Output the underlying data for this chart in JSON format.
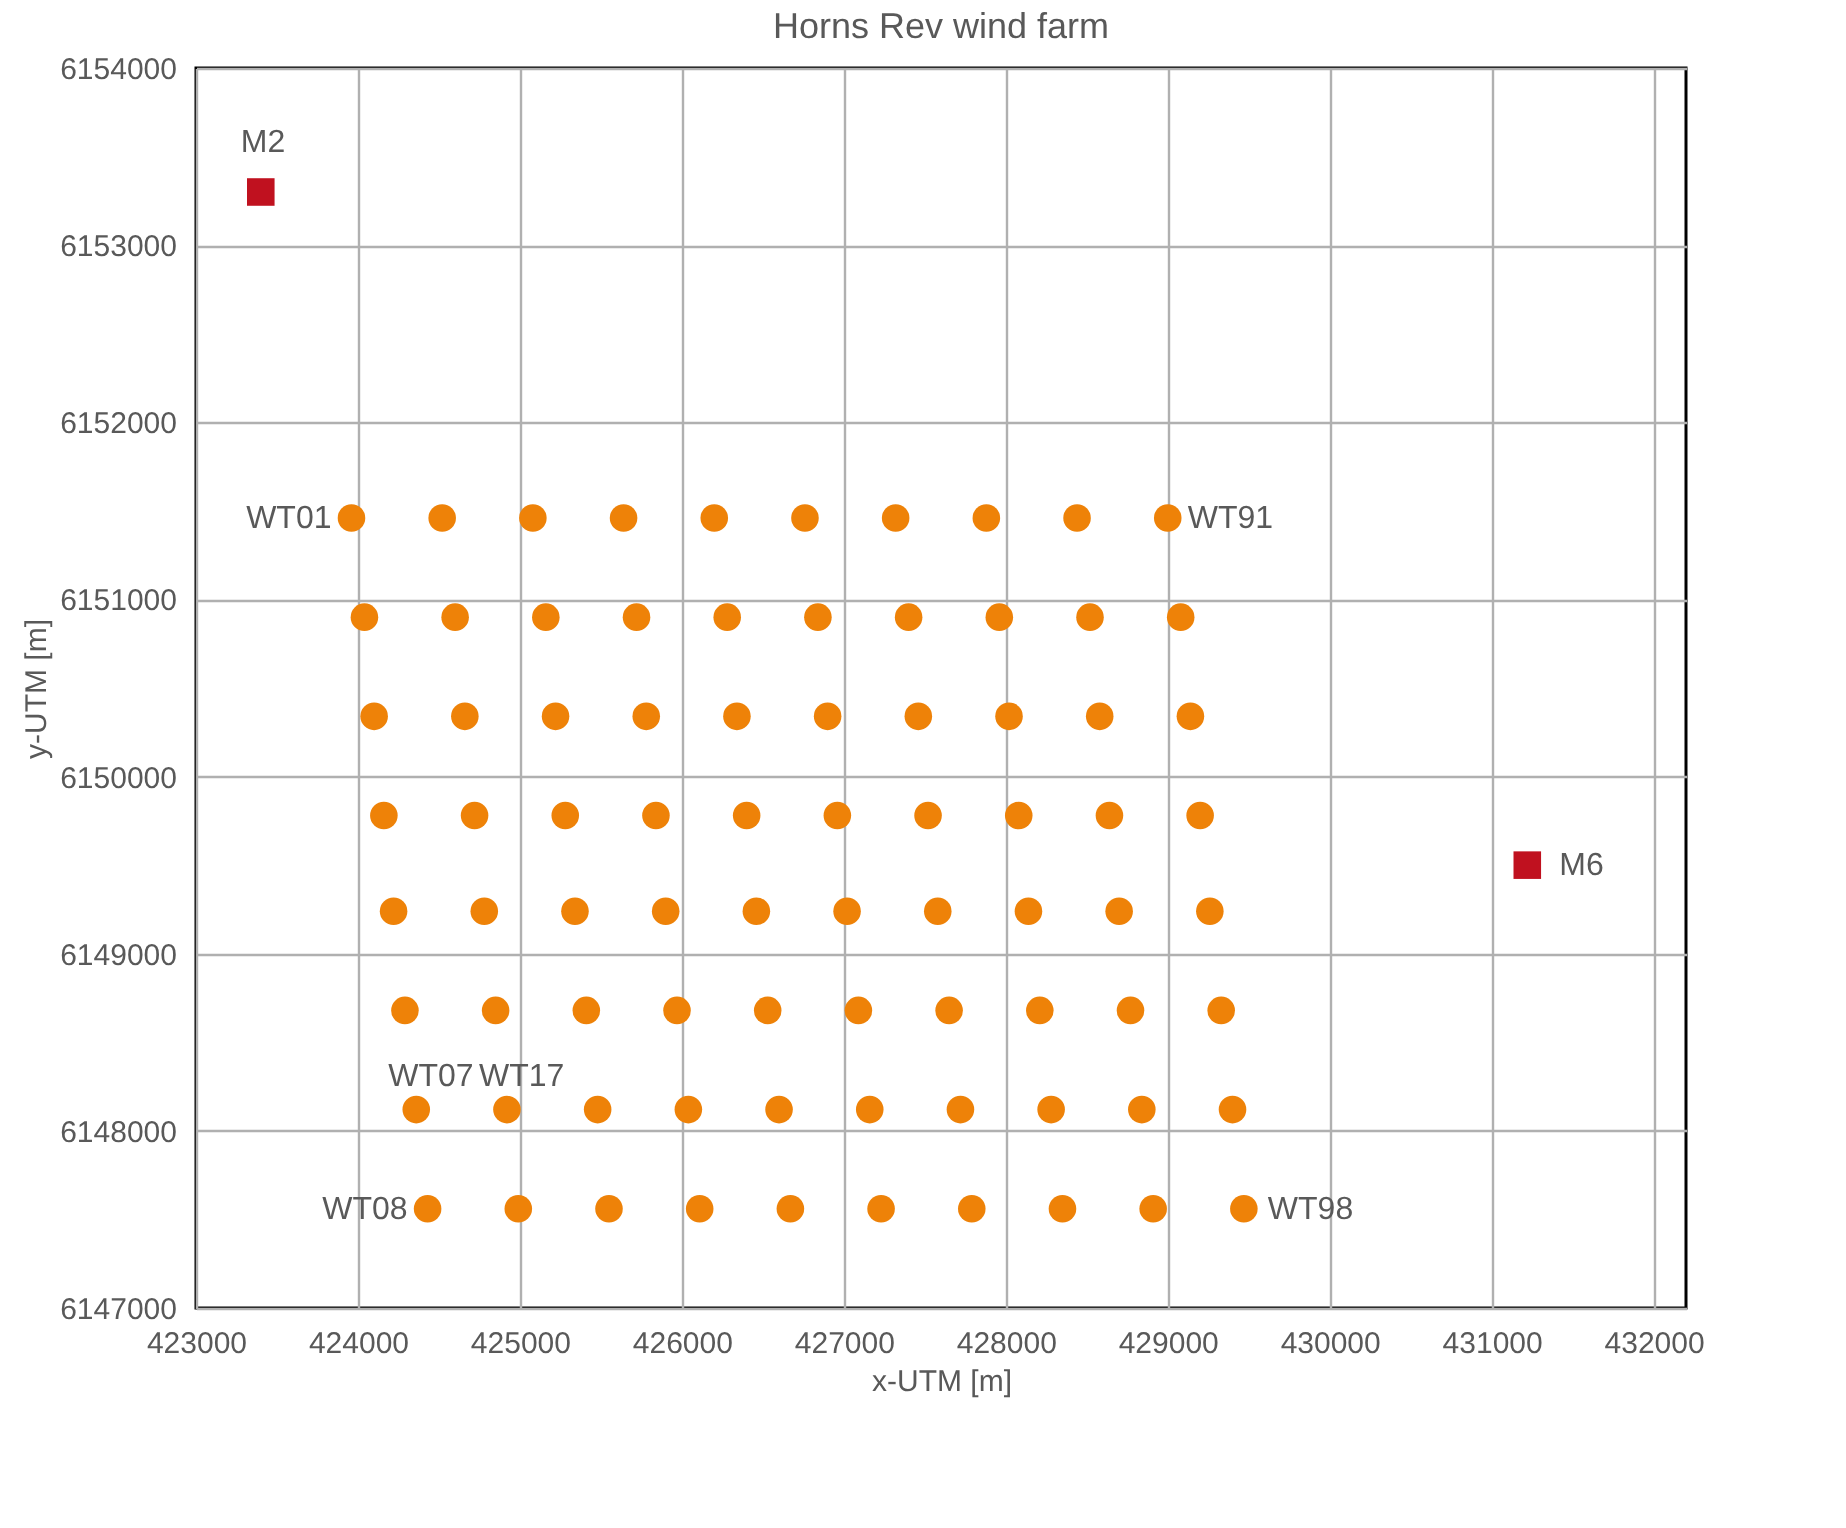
{
  "chart_data": {
    "type": "scatter",
    "title": "Horns Rev wind farm",
    "xlabel": "x-UTM [m]",
    "ylabel": "y-UTM [m]",
    "xlim": [
      423000,
      432200
    ],
    "xticks": [
      423000,
      424000,
      425000,
      426000,
      427000,
      428000,
      429000,
      430000,
      431000,
      432000
    ],
    "ylim": [
      6147000,
      6154000
    ],
    "yticks": [
      6147000,
      6148000,
      6149000,
      6150000,
      6151000,
      6152000,
      6153000,
      6154000
    ],
    "grid": true,
    "series": [
      {
        "color": "#ee8208",
        "marker": "circle",
        "x": [
          423960,
          424520,
          425080,
          425640,
          426200,
          426760,
          427320,
          427880,
          428440,
          429000,
          424040,
          424600,
          425160,
          425720,
          426280,
          426840,
          427400,
          427960,
          428520,
          429080,
          424100,
          424660,
          425220,
          425780,
          426340,
          426900,
          427460,
          428020,
          428580,
          429140,
          424160,
          424720,
          425280,
          425840,
          426400,
          426960,
          427520,
          428080,
          428640,
          429200,
          424220,
          424780,
          425340,
          425900,
          426460,
          427020,
          427580,
          428140,
          428700,
          429260,
          424290,
          424850,
          425410,
          425970,
          426530,
          427090,
          427650,
          428210,
          428770,
          429330,
          424360,
          424920,
          425480,
          426040,
          426600,
          427160,
          427720,
          428280,
          428840,
          429400,
          424430,
          424990,
          425550,
          426110,
          426670,
          427230,
          427790,
          428350,
          428910,
          429470
        ],
        "values": [
          6151460,
          6151460,
          6151460,
          6151460,
          6151460,
          6151460,
          6151460,
          6151460,
          6151460,
          6151460,
          6150900,
          6150900,
          6150900,
          6150900,
          6150900,
          6150900,
          6150900,
          6150900,
          6150900,
          6150900,
          6150340,
          6150340,
          6150340,
          6150340,
          6150340,
          6150340,
          6150340,
          6150340,
          6150340,
          6150340,
          6149780,
          6149780,
          6149780,
          6149780,
          6149780,
          6149780,
          6149780,
          6149780,
          6149780,
          6149780,
          6149240,
          6149240,
          6149240,
          6149240,
          6149240,
          6149240,
          6149240,
          6149240,
          6149240,
          6149240,
          6148680,
          6148680,
          6148680,
          6148680,
          6148680,
          6148680,
          6148680,
          6148680,
          6148680,
          6148680,
          6148120,
          6148120,
          6148120,
          6148120,
          6148120,
          6148120,
          6148120,
          6148120,
          6148120,
          6148120,
          6147560,
          6147560,
          6147560,
          6147560,
          6147560,
          6147560,
          6147560,
          6147560,
          6147560,
          6147560
        ]
      },
      {
        "color": "#c0111f",
        "marker": "square",
        "x": [
          423400,
          431220
        ],
        "values": [
          6153300,
          6149500
        ]
      }
    ],
    "annotations": [
      {
        "text": "WT01",
        "x": 423960,
        "y": 6151460
      },
      {
        "text": "WT91",
        "x": 429000,
        "y": 6151460
      },
      {
        "text": "WT07",
        "x": 424360,
        "y": 6148120
      },
      {
        "text": "WT17",
        "x": 424920,
        "y": 6148120
      },
      {
        "text": "WT08",
        "x": 424430,
        "y": 6147560
      },
      {
        "text": "WT98",
        "x": 429470,
        "y": 6147560
      },
      {
        "text": "M2",
        "x": 423400,
        "y": 6153300
      },
      {
        "text": "M6",
        "x": 431220,
        "y": 6149500
      }
    ]
  }
}
